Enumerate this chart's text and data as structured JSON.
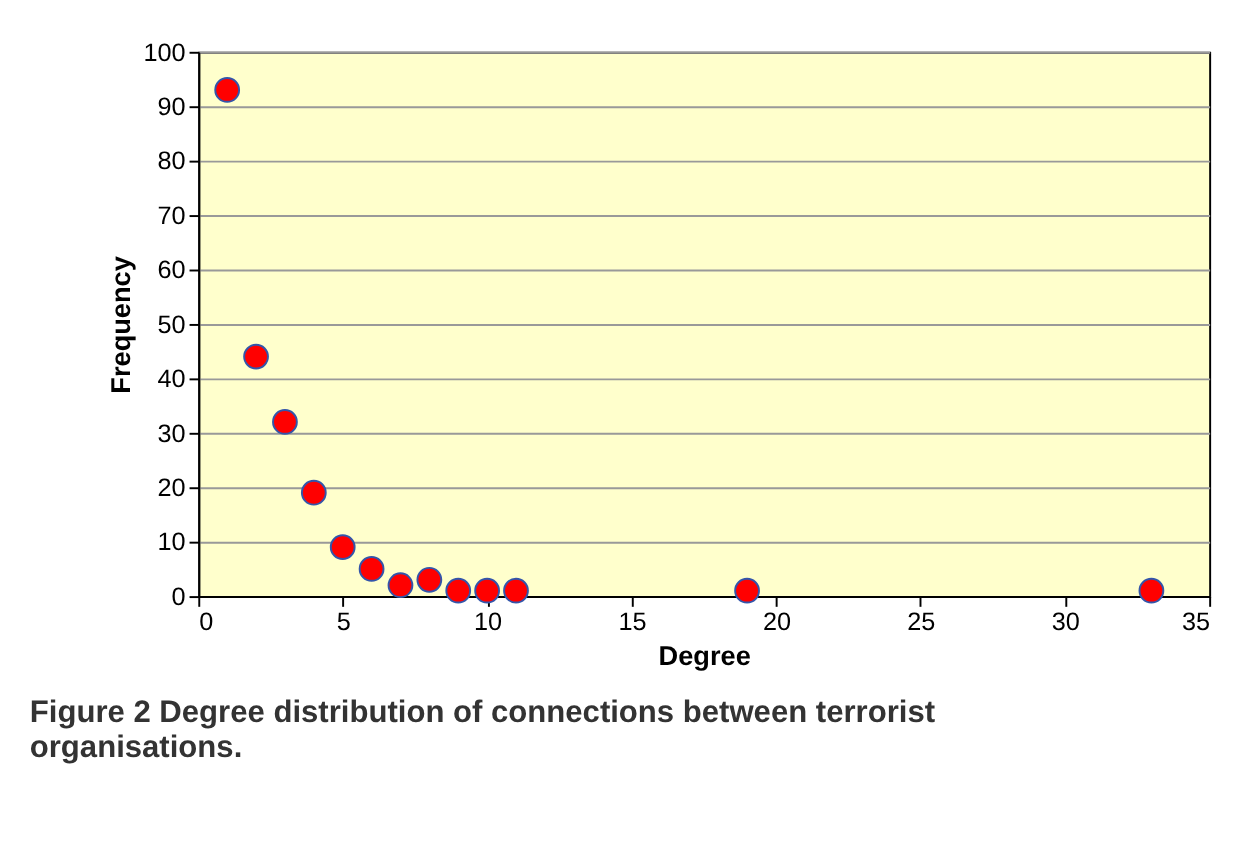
{
  "chart_data": {
    "type": "scatter",
    "xlabel": "Degree",
    "ylabel": "Frequency",
    "x": [
      1,
      2,
      3,
      4,
      5,
      6,
      7,
      8,
      9,
      10,
      11,
      19,
      33
    ],
    "series": [
      {
        "color": "#ff0000",
        "values": [
          93,
          44,
          32,
          19,
          9,
          5,
          2,
          3,
          1,
          1,
          1,
          1,
          1
        ]
      }
    ],
    "xlim": [
      0,
      35
    ],
    "xticks": [
      0,
      5,
      10,
      15,
      20,
      25,
      30,
      35
    ],
    "ylim": [
      0,
      100
    ],
    "yticks": [
      0,
      10,
      20,
      30,
      40,
      50,
      60,
      70,
      80,
      90,
      100
    ],
    "grid": "y",
    "marker": "circle",
    "annotations": [
      "Figure 2 Degree distribution of connections between terrorist organisations."
    ]
  }
}
